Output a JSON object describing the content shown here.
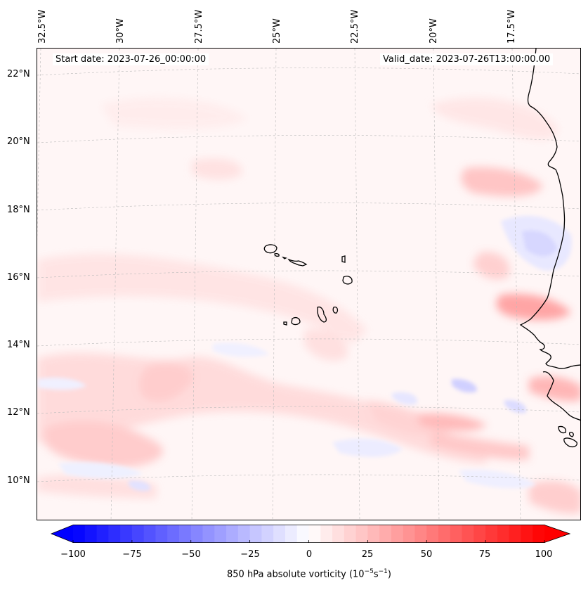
{
  "map": {
    "lon_labels": [
      "32.5°W",
      "30°W",
      "27.5°W",
      "25°W",
      "22.5°W",
      "20°W",
      "17.5°W"
    ],
    "lat_labels": [
      "22°N",
      "20°N",
      "18°N",
      "16°N",
      "14°N",
      "12°N",
      "10°N"
    ],
    "start_date": "Start date: 2023-07-26_00:00:00",
    "valid_date": "Valid_date: 2023-07-26T13:00:00.00",
    "field": "850 hPa absolute vorticity",
    "colors": {
      "negative": "#0000ff",
      "zero": "#ffffff",
      "positive": "#ff0000",
      "coast": "#000000"
    }
  },
  "colorbar": {
    "ticks": [
      "−100",
      "−75",
      "−50",
      "−25",
      "0",
      "25",
      "50",
      "75",
      "100"
    ],
    "label_text": "850 hPa absolute vorticity (10",
    "label_exp1": "−5",
    "label_mid": "s",
    "label_exp2": "−1",
    "label_end": ")",
    "min": -100,
    "max": 100
  }
}
